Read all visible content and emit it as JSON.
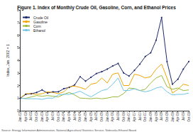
{
  "chart_data": {
    "type": "line",
    "title": "Figure 1. Index of Monthly Crude Oil, Gasoline, Corn, and Ethanol Prices",
    "y_label": "Index, Jan. 2002 = 1",
    "annotations": [
      "Source: Energy Information Administration, National Agricultural Statistics Service, Nebraska Ethanol Board"
    ],
    "categories": [
      "Jan-02",
      "Apr-02",
      "Jul-02",
      "Oct-02",
      "Jan-03",
      "Apr-03",
      "Jul-03",
      "Oct-03",
      "Jan-04",
      "Apr-04",
      "Jul-04",
      "Oct-04",
      "Jan-05",
      "Apr-05",
      "Jul-05",
      "Oct-05",
      "Jan-06",
      "Apr-06",
      "Jul-06",
      "Oct-06",
      "Jan-07",
      "Apr-07",
      "Jul-07",
      "Oct-07",
      "Jan-08",
      "Apr-08",
      "Jul-08",
      "Oct-08",
      "Jan-09",
      "Apr-09",
      "Jul-09",
      "Oct-09"
    ],
    "series": [
      {
        "name": "Crude Oil",
        "color": "#1f2a6b",
        "marker": "circle",
        "values": [
          1,
          1.3,
          1.35,
          1.45,
          1.65,
          1.4,
          1.5,
          1.5,
          1.75,
          1.85,
          2.05,
          2.7,
          2.35,
          2.65,
          2.95,
          3.1,
          3.3,
          3.55,
          3.75,
          3.0,
          2.75,
          3.2,
          3.7,
          4.3,
          4.6,
          5.6,
          7.4,
          3.9,
          2.1,
          2.5,
          3.3,
          3.9
        ]
      },
      {
        "name": "Gasoline",
        "color": "#f0a500",
        "marker": "none",
        "values": [
          1,
          1.35,
          1.35,
          1.3,
          1.35,
          1.5,
          1.45,
          1.35,
          1.5,
          1.9,
          1.95,
          1.85,
          1.7,
          2.1,
          2.2,
          2.6,
          2.2,
          2.9,
          3.0,
          2.0,
          2.0,
          2.9,
          2.8,
          2.6,
          2.7,
          3.3,
          3.7,
          2.6,
          1.4,
          1.7,
          2.1,
          2.0
        ]
      },
      {
        "name": "Corn",
        "color": "#9ab83a",
        "marker": "none",
        "values": [
          1,
          0.98,
          1.1,
          1.2,
          1.15,
          1.2,
          1.15,
          1.1,
          1.3,
          1.45,
          1.25,
          1.0,
          0.98,
          0.95,
          1.0,
          0.95,
          1.0,
          1.1,
          1.1,
          1.35,
          1.8,
          1.75,
          1.6,
          1.7,
          2.2,
          2.6,
          2.8,
          1.9,
          1.7,
          1.8,
          1.6,
          1.65
        ]
      },
      {
        "name": "Ethanol",
        "color": "#6fc4e6",
        "marker": "none",
        "values": [
          1,
          0.95,
          0.95,
          0.95,
          0.9,
          1.0,
          1.0,
          1.25,
          1.3,
          1.3,
          1.4,
          1.55,
          1.3,
          1.1,
          1.35,
          1.6,
          1.7,
          2.1,
          2.6,
          1.6,
          1.6,
          1.75,
          1.6,
          1.5,
          1.6,
          1.8,
          1.9,
          1.5,
          1.25,
          1.3,
          1.3,
          1.4
        ]
      }
    ],
    "ylim": [
      0,
      8
    ],
    "yticks": [
      0,
      1,
      2,
      3,
      4,
      5,
      6,
      7,
      8
    ],
    "grid": false,
    "legend": "top-left"
  }
}
